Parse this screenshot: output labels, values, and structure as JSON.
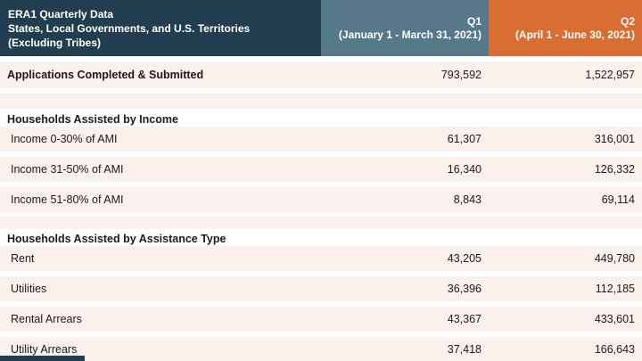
{
  "colors": {
    "header_bg": "#223d4d",
    "q1_header_bg": "#567889",
    "q2_header_bg": "#d96e33",
    "row_bg": "#fbf1ec"
  },
  "header": {
    "title_line1": "ERA1 Quarterly Data",
    "title_line2": "States, Local Governments, and U.S. Territories",
    "title_line3": "(Excluding Tribes)",
    "q1_label": "Q1",
    "q1_period": "(January 1 - March 31, 2021)",
    "q2_label": "Q2",
    "q2_period": "(April 1 - June 30, 2021)"
  },
  "rows": [
    {
      "kind": "data-bold",
      "label": "Applications Completed & Submitted",
      "q1": "793,592",
      "q2": "1,522,957"
    },
    {
      "kind": "section",
      "label": "Households Assisted by Income"
    },
    {
      "kind": "data",
      "label": "Income 0-30% of AMI",
      "q1": "61,307",
      "q2": "316,001"
    },
    {
      "kind": "data",
      "label": "Income 31-50% of AMI",
      "q1": "16,340",
      "q2": "126,332"
    },
    {
      "kind": "data",
      "label": "Income 51-80% of AMI",
      "q1": "8,843",
      "q2": "69,114"
    },
    {
      "kind": "section",
      "label": "Households Assisted by Assistance Type"
    },
    {
      "kind": "data",
      "label": "Rent",
      "q1": "43,205",
      "q2": "449,780"
    },
    {
      "kind": "data",
      "label": "Utilities",
      "q1": "36,396",
      "q2": "112,185"
    },
    {
      "kind": "data",
      "label": "Rental Arrears",
      "q1": "43,367",
      "q2": "433,601"
    },
    {
      "kind": "data",
      "label": "Utility Arrears",
      "q1": "37,418",
      "q2": "166,643"
    }
  ]
}
